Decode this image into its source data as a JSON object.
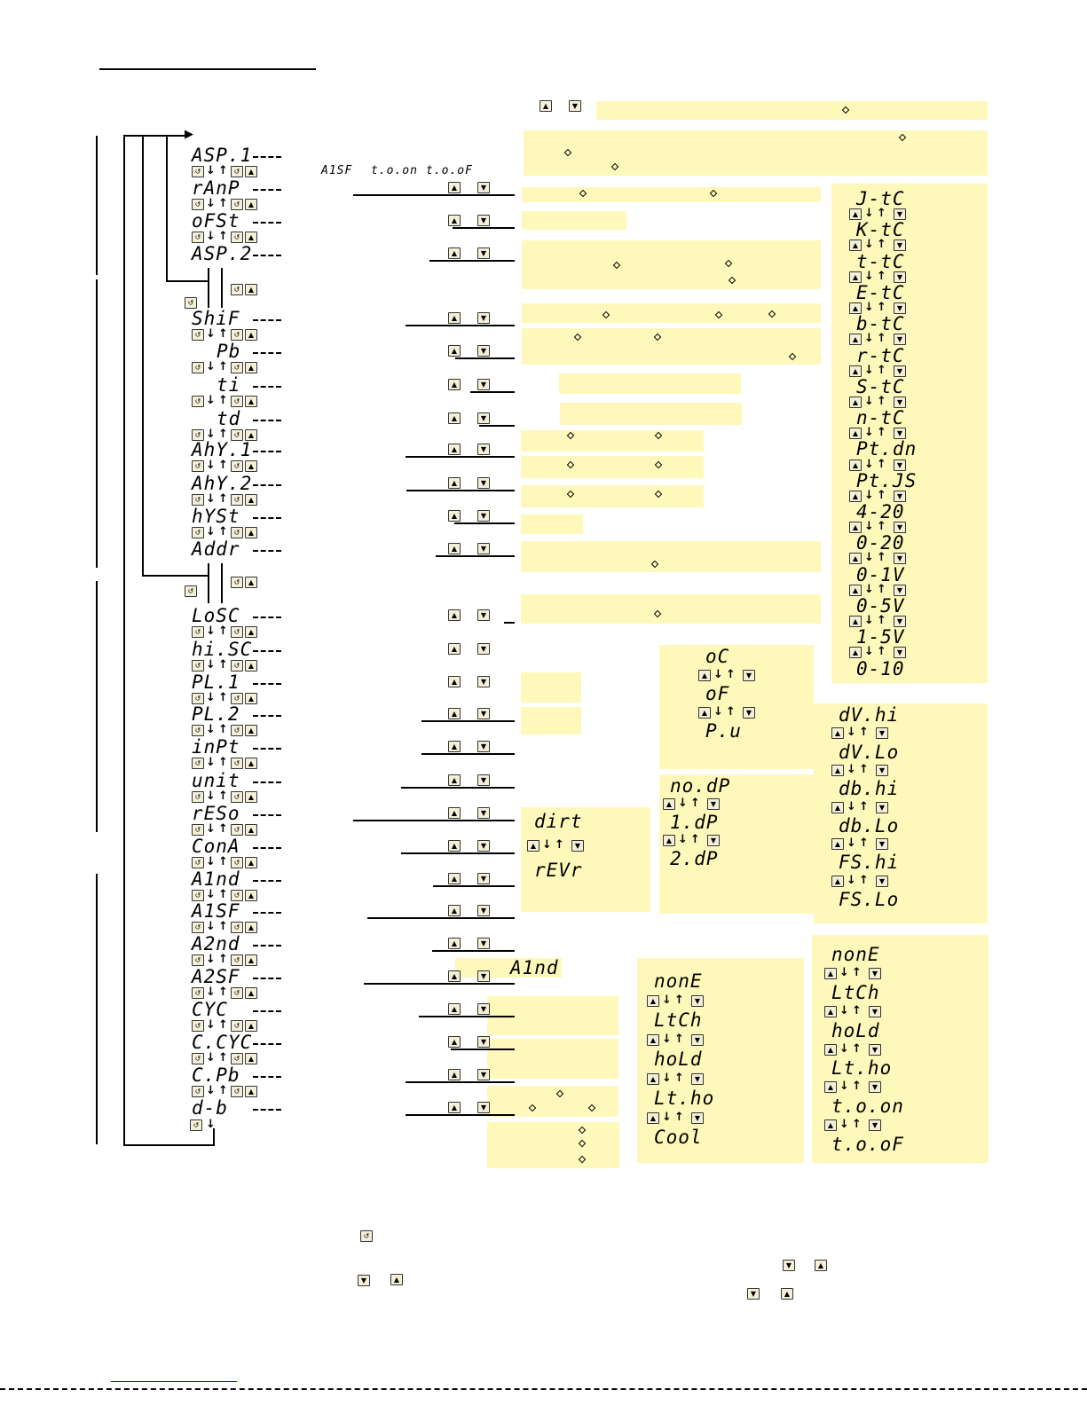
{
  "menu": [
    "ASP.1",
    "rAnP",
    "oFSt",
    "ASP.2",
    "ShiF",
    "Pb",
    "ti",
    "td",
    "AhY.1",
    "AhY.2",
    "hYSt",
    "Addr",
    "LoSC",
    "hi.SC",
    "PL.1",
    "PL.2",
    "inPt",
    "unit",
    "rESo",
    "ConA",
    "A1nd",
    "A1SF",
    "A2nd",
    "A2SF",
    "CYC",
    "C.CYC",
    "C.Pb",
    "d-b"
  ],
  "inline_options": [
    "A1SF",
    "t.o.on",
    "t.o.oF"
  ],
  "alarm_ref": "A1nd",
  "input_types": [
    "J-tC",
    "K-tC",
    "t-tC",
    "E-tC",
    "b-tC",
    "r-tC",
    "S-tC",
    "n-tC",
    "Pt.dn",
    "Pt.JS",
    "4-20",
    "0-20",
    "0-1V",
    "0-5V",
    "1-5V",
    "0-10"
  ],
  "units": [
    "oC",
    "oF",
    "P.u"
  ],
  "resolution": [
    "no.dP",
    "1.dP",
    "2.dP"
  ],
  "control_action": [
    "dirt",
    "rEVr"
  ],
  "scaling": [
    "dV.hi",
    "dV.Lo",
    "db.hi",
    "db.Lo",
    "FS.hi",
    "FS.Lo"
  ],
  "alarm_modes_1": [
    "nonE",
    "LtCh",
    "hoLd",
    "Lt.ho",
    "Cool"
  ],
  "alarm_modes_2": [
    "nonE",
    "LtCh",
    "hoLd",
    "Lt.ho",
    "t.o.on",
    "t.o.oF"
  ],
  "icons": {
    "enter": "enter-key-icon",
    "up": "up-key-icon",
    "down": "down-key-icon"
  },
  "colors": {
    "box": "#fff8bb",
    "line": "#000000"
  }
}
